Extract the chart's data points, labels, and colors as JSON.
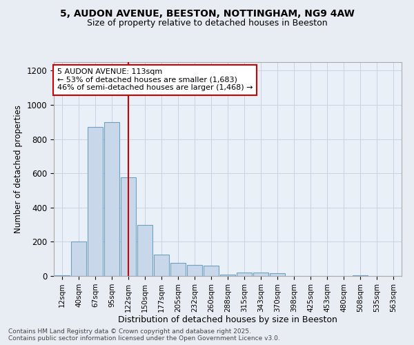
{
  "title1": "5, AUDON AVENUE, BEESTON, NOTTINGHAM, NG9 4AW",
  "title2": "Size of property relative to detached houses in Beeston",
  "xlabel": "Distribution of detached houses by size in Beeston",
  "ylabel": "Number of detached properties",
  "bar_labels": [
    "12sqm",
    "40sqm",
    "67sqm",
    "95sqm",
    "122sqm",
    "150sqm",
    "177sqm",
    "205sqm",
    "232sqm",
    "260sqm",
    "288sqm",
    "315sqm",
    "343sqm",
    "370sqm",
    "398sqm",
    "425sqm",
    "453sqm",
    "480sqm",
    "508sqm",
    "535sqm",
    "563sqm"
  ],
  "bar_values": [
    5,
    200,
    870,
    900,
    575,
    300,
    125,
    75,
    65,
    60,
    10,
    20,
    20,
    15,
    0,
    0,
    0,
    0,
    5,
    0,
    0
  ],
  "bar_color": "#c8d8ea",
  "bar_edge_color": "#6fa0c0",
  "background_color": "#e8edf4",
  "grid_color": "#d0d8e8",
  "plot_bg_color": "#eaf0f8",
  "red_line_x": 4,
  "annotation_text": "5 AUDON AVENUE: 113sqm\n← 53% of detached houses are smaller (1,683)\n46% of semi-detached houses are larger (1,468) →",
  "annotation_box_color": "#ffffff",
  "annotation_box_edge": "#cc0000",
  "red_line_color": "#cc0000",
  "ylim": [
    0,
    1250
  ],
  "yticks": [
    0,
    200,
    400,
    600,
    800,
    1000,
    1200
  ],
  "footnote": "Contains HM Land Registry data © Crown copyright and database right 2025.\nContains public sector information licensed under the Open Government Licence v3.0."
}
